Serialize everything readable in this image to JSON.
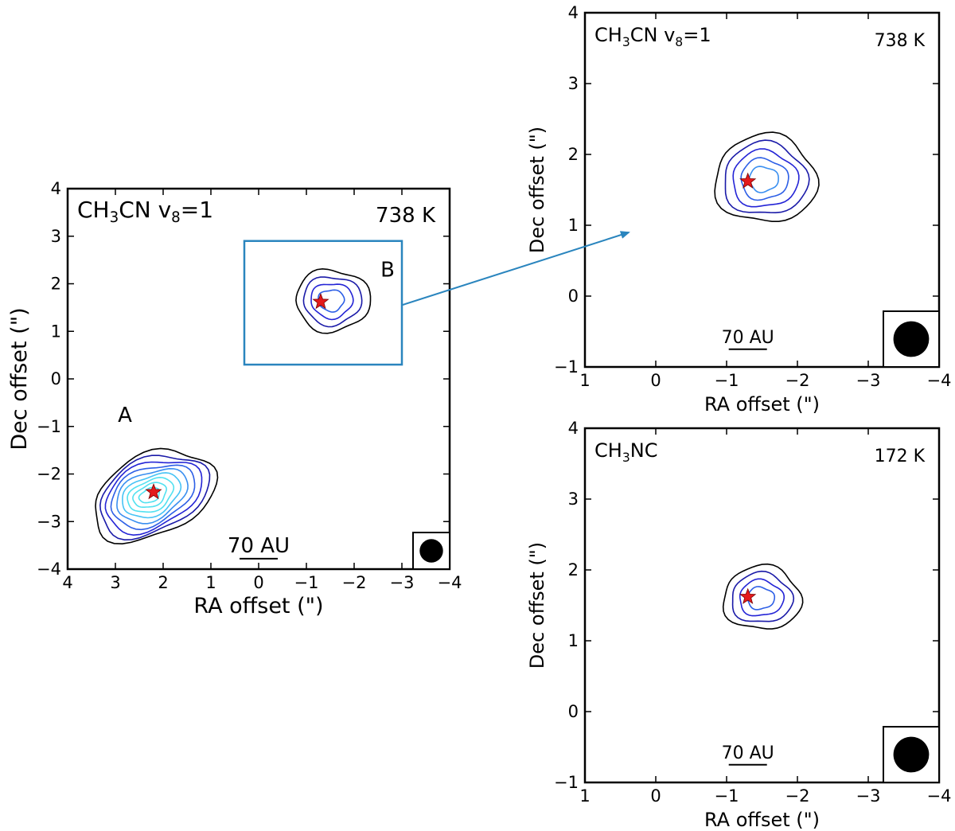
{
  "colors": {
    "frame": "#000000",
    "star": "#e41a1c",
    "zoom_box": "#2a85be",
    "contour_levels": [
      "#000000",
      "#1a1aa8",
      "#2424d6",
      "#2d5fe6",
      "#3a8ff0",
      "#47c3f5",
      "#52e1f0"
    ]
  },
  "chart_data": [
    {
      "id": "left",
      "type": "contour",
      "species_html": "CH<sub>3</sub>CN  v<sub>8</sub>=1",
      "species_parts": [
        "CH",
        "3",
        "CN  v",
        "8",
        "=1"
      ],
      "temperature": "738 K",
      "xlabel": "RA offset (\")",
      "ylabel": "Dec offset (\")",
      "xlim": [
        4,
        -4
      ],
      "ylim": [
        -4,
        4
      ],
      "xticks": [
        "4",
        "3",
        "2",
        "1",
        "0",
        "−1",
        "−2",
        "−3",
        "−4"
      ],
      "yticks": [
        "−4",
        "−3",
        "−2",
        "−1",
        "0",
        "1",
        "2",
        "3",
        "4"
      ],
      "scalebar_label": "70 AU",
      "scalebar_center": [
        0,
        -3.78
      ],
      "source_labels": [
        {
          "text": "A",
          "x": 2.8,
          "y": -0.9
        },
        {
          "text": "B",
          "x": -2.7,
          "y": 2.15
        }
      ],
      "zoom_box": {
        "x0": 0.3,
        "x1": -3.0,
        "y0": 0.3,
        "y1": 2.9
      },
      "stars": [
        [
          2.2,
          -2.38
        ],
        [
          -1.3,
          1.62
        ]
      ],
      "sources": [
        {
          "cx": 2.2,
          "cy": -2.45,
          "rx": 1.35,
          "ry": 0.85,
          "rot": -25,
          "levels": 9
        },
        {
          "cx": -1.55,
          "cy": 1.65,
          "rx": 0.78,
          "ry": 0.65,
          "rot": 0,
          "levels": 4
        }
      ]
    },
    {
      "id": "top-right",
      "type": "contour",
      "species_parts": [
        "CH",
        "3",
        "CN  v",
        "8",
        "=1"
      ],
      "temperature": "738 K",
      "xlabel": "RA offset (\")",
      "ylabel": "Dec offset (\")",
      "xlim": [
        1,
        -4
      ],
      "ylim": [
        -1,
        4
      ],
      "xticks": [
        "1",
        "0",
        "−1",
        "−2",
        "−3",
        "−4"
      ],
      "yticks": [
        "−1",
        "0",
        "1",
        "2",
        "3",
        "4"
      ],
      "scalebar_label": "70 AU",
      "scalebar_center": [
        -1.3,
        -0.75
      ],
      "stars": [
        [
          -1.3,
          1.62
        ]
      ],
      "sources": [
        {
          "cx": -1.55,
          "cy": 1.65,
          "rx": 0.72,
          "ry": 0.62,
          "rot": 0,
          "levels": 5
        }
      ]
    },
    {
      "id": "bottom-right",
      "type": "contour",
      "species_parts": [
        "CH",
        "3",
        "NC"
      ],
      "temperature": "172 K",
      "xlabel": "RA offset (\")",
      "ylabel": "Dec offset (\")",
      "xlim": [
        1,
        -4
      ],
      "ylim": [
        -1,
        4
      ],
      "xticks": [
        "1",
        "0",
        "−1",
        "−2",
        "−3",
        "−4"
      ],
      "yticks": [
        "−1",
        "0",
        "1",
        "2",
        "3",
        "4"
      ],
      "scalebar_label": "70 AU",
      "scalebar_center": [
        -1.3,
        -0.75
      ],
      "stars": [
        [
          -1.3,
          1.62
        ]
      ],
      "sources": [
        {
          "cx": -1.5,
          "cy": 1.6,
          "rx": 0.55,
          "ry": 0.45,
          "rot": 0,
          "levels": 4
        }
      ]
    }
  ]
}
